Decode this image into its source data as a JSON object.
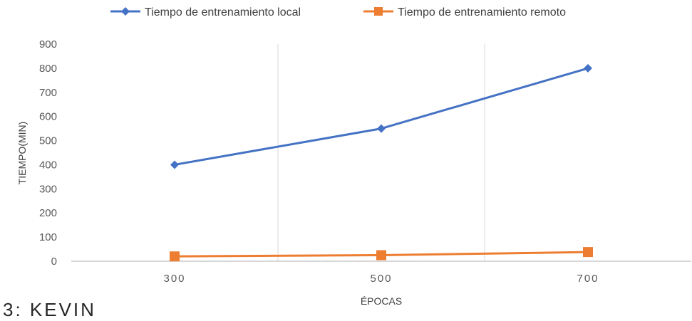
{
  "caption": "3: KEVIN",
  "colors": {
    "local": "#4472C4",
    "remote": "#ED7D31",
    "grid": "#D9D9D9",
    "axis": "#BFBFBF",
    "text": "#595959"
  },
  "chart_data": {
    "type": "line",
    "title": "",
    "xlabel": "ÉPOCAS",
    "ylabel": "TIEMPO(MIN)",
    "categories": [
      "300",
      "500",
      "700"
    ],
    "ylim": [
      0,
      900
    ],
    "yticks": [
      "0",
      "100",
      "200",
      "300",
      "400",
      "500",
      "600",
      "700",
      "800",
      "900"
    ],
    "grid": "vertical",
    "legend_position": "top",
    "series": [
      {
        "name": "Tiempo de entrenamiento local",
        "marker": "diamond",
        "color": "#4472C4",
        "values": [
          400,
          550,
          800
        ]
      },
      {
        "name": "Tiempo de entrenamiento remoto",
        "marker": "square",
        "color": "#ED7D31",
        "values": [
          20,
          25,
          38
        ]
      }
    ]
  }
}
